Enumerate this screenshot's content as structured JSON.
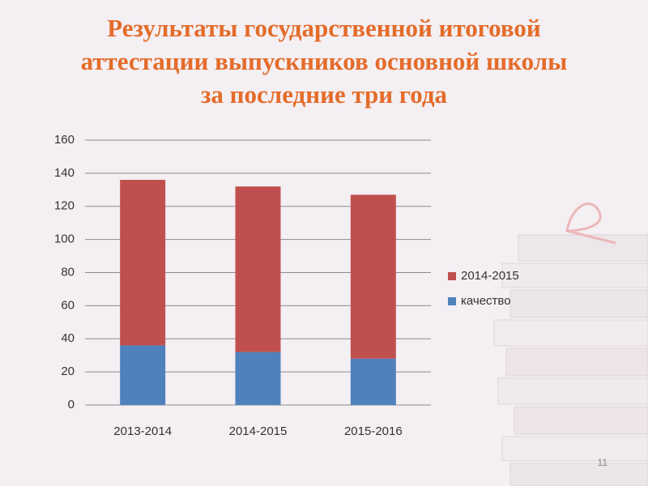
{
  "slide": {
    "title_lines": [
      "Результаты государственной итоговой",
      "аттестации выпускников основной школы",
      "за последние три года"
    ],
    "page_number": "11"
  },
  "chart_data": {
    "type": "stacked-bar",
    "categories": [
      "2013-2014",
      "2014-2015",
      "2015-2016"
    ],
    "series": [
      {
        "name": "качество",
        "color": "#4f81bd",
        "values": [
          36,
          32,
          28
        ]
      },
      {
        "name": "2014-2015",
        "color": "#c0504d",
        "values": [
          100,
          100,
          99
        ]
      }
    ],
    "ylim": [
      0,
      160
    ],
    "yticks": [
      0,
      20,
      40,
      60,
      80,
      100,
      120,
      140,
      160
    ],
    "grid": true,
    "legend": "right"
  }
}
